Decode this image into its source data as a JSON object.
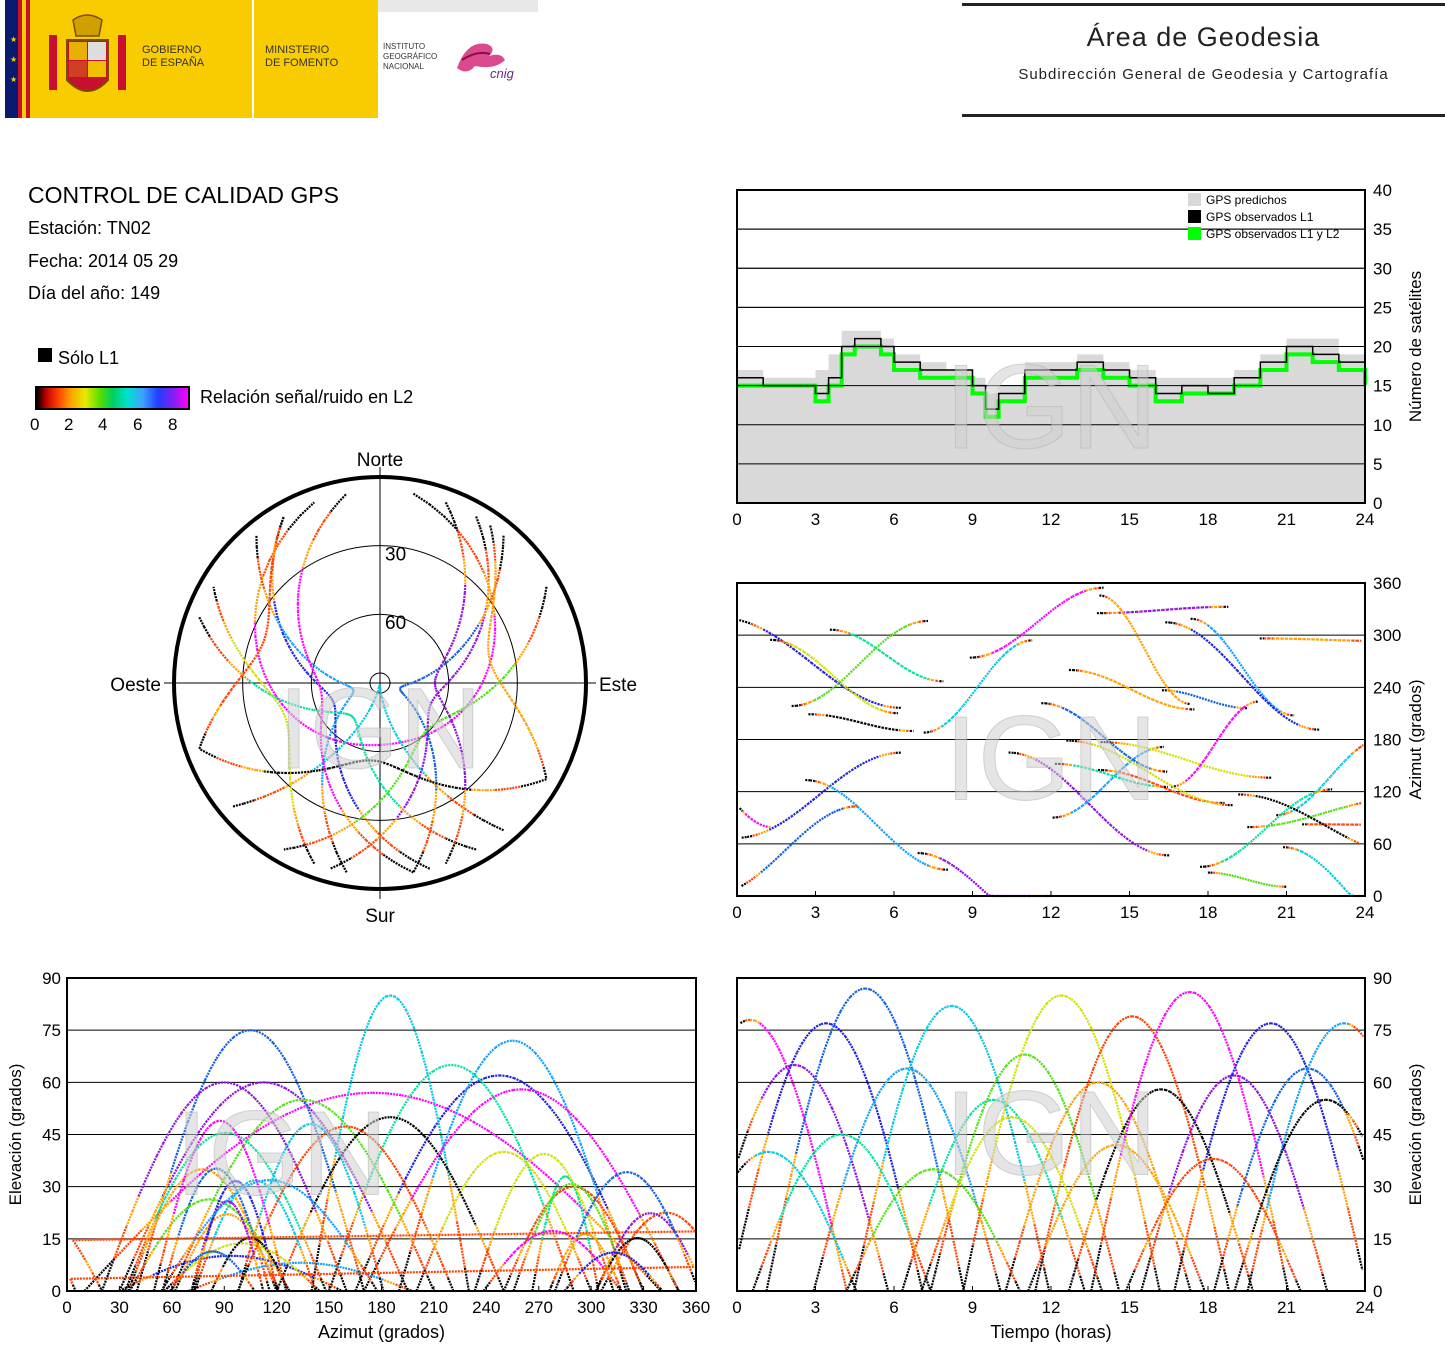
{
  "header": {
    "gov_line1": "GOBIERNO",
    "gov_line2": "DE ESPAÑA",
    "min_line1": "MINISTERIO",
    "min_line2": "DE FOMENTO",
    "inst_line1": "INSTITUTO",
    "inst_line2": "GEOGRÁFICO",
    "inst_line3": "NACIONAL",
    "cnig": "cnig",
    "area_title": "Área de Geodesia",
    "area_subtitle": "Subdirección General de Geodesia y Cartografía"
  },
  "info": {
    "title": "CONTROL DE CALIDAD GPS",
    "station": "Estación: TN02",
    "date": "Fecha: 2014 05 29",
    "doy": "Día del año: 149",
    "solo_l1": "Sólo L1",
    "snr_label": "Relación señal/ruido en L2",
    "snr_ticks": [
      "0",
      "2",
      "4",
      "6",
      "8"
    ]
  },
  "watermark": "IGN",
  "colors": {
    "predicted": "#d9d9d9",
    "observed_l1": "#000000",
    "observed_l1l2": "#00ff00",
    "track_palette": [
      "#ff00ff",
      "#9010e0",
      "#2020e0",
      "#1060e0",
      "#10a0ff",
      "#00c8e0",
      "#00e0a0",
      "#50e010",
      "#d0e000",
      "#ffa000",
      "#ff4000",
      "#000000"
    ]
  },
  "chart_data": [
    {
      "type": "area",
      "id": "satellite-count",
      "x_ticks": [
        "0",
        "3",
        "6",
        "9",
        "12",
        "15",
        "18",
        "21",
        "24"
      ],
      "y_ticks": [
        "0",
        "5",
        "10",
        "15",
        "20",
        "25",
        "30",
        "35",
        "40"
      ],
      "xlim": [
        0,
        24
      ],
      "ylim": [
        0,
        40
      ],
      "ylabel": "Número de satélites",
      "legend": [
        "GPS predichos",
        "GPS observados L1",
        "GPS observados L1 y L2"
      ],
      "legend_position": "top-right",
      "grid": true,
      "series": [
        {
          "name": "GPS predichos",
          "x": [
            0,
            1,
            2,
            3,
            3.5,
            4,
            4.5,
            5,
            5.5,
            6,
            7,
            8,
            9,
            9.5,
            10,
            11,
            12,
            13,
            14,
            15,
            16,
            17,
            18,
            19,
            20,
            21,
            22,
            23,
            24
          ],
          "y": [
            17,
            16,
            16,
            17,
            19,
            22,
            22,
            22,
            21,
            19,
            18,
            17,
            16,
            14,
            15,
            18,
            18,
            19,
            18,
            17,
            16,
            16,
            16,
            17,
            19,
            21,
            21,
            19,
            17
          ]
        },
        {
          "name": "GPS observados L1",
          "x": [
            0,
            1,
            2,
            3,
            3.5,
            4,
            4.5,
            5,
            5.5,
            6,
            7,
            8,
            9,
            9.5,
            10,
            11,
            12,
            13,
            14,
            15,
            16,
            17,
            18,
            19,
            20,
            21,
            22,
            23,
            24
          ],
          "y": [
            16,
            15,
            15,
            14,
            16,
            20,
            21,
            21,
            20,
            18,
            17,
            17,
            15,
            12,
            14,
            17,
            17,
            18,
            17,
            16,
            14,
            15,
            14,
            16,
            18,
            20,
            19,
            18,
            16
          ]
        },
        {
          "name": "GPS observados L1 y L2",
          "x": [
            0,
            1,
            2,
            3,
            3.5,
            4,
            4.5,
            5,
            5.5,
            6,
            7,
            8,
            9,
            9.5,
            10,
            11,
            12,
            13,
            14,
            15,
            16,
            17,
            18,
            19,
            20,
            21,
            22,
            23,
            24
          ],
          "y": [
            15,
            15,
            15,
            13,
            15,
            19,
            20,
            20,
            19,
            17,
            16,
            16,
            14,
            11,
            13,
            16,
            16,
            17,
            16,
            15,
            13,
            14,
            14,
            15,
            17,
            19,
            18,
            17,
            15
          ]
        }
      ]
    },
    {
      "type": "scatter",
      "id": "skyplot",
      "directions": {
        "north": "Norte",
        "south": "Sur",
        "east": "Este",
        "west": "Oeste"
      },
      "ring_labels": [
        "30",
        "60"
      ],
      "rings": [
        30,
        60
      ],
      "series": [
        {
          "rise_az": 10,
          "set_az": 340,
          "max_el": 57
        },
        {
          "rise_az": 30,
          "set_az": 195,
          "max_el": 60
        },
        {
          "rise_az": 165,
          "set_az": 330,
          "max_el": 62
        },
        {
          "rise_az": 40,
          "set_az": 170,
          "max_el": 75
        },
        {
          "rise_az": 190,
          "set_az": 320,
          "max_el": 72
        },
        {
          "rise_az": 140,
          "set_az": 230,
          "max_el": 85
        },
        {
          "rise_az": 150,
          "set_az": 290,
          "max_el": 65
        },
        {
          "rise_az": 60,
          "set_az": 210,
          "max_el": 55
        },
        {
          "rise_az": 200,
          "set_az": 300,
          "max_el": 40
        },
        {
          "rise_az": 35,
          "set_az": 120,
          "max_el": 35
        },
        {
          "rise_az": 250,
          "set_az": 330,
          "max_el": 30
        },
        {
          "rise_az": 120,
          "set_az": 250,
          "max_el": 50
        },
        {
          "rise_az": 170,
          "set_az": 350,
          "max_el": 58
        },
        {
          "rise_az": 20,
          "set_az": 160,
          "max_el": 60
        }
      ]
    },
    {
      "type": "scatter",
      "id": "azimuth-time",
      "x_ticks": [
        "0",
        "3",
        "6",
        "9",
        "12",
        "15",
        "18",
        "21",
        "24"
      ],
      "y_ticks": [
        "0",
        "60",
        "120",
        "180",
        "240",
        "300",
        "360"
      ],
      "xlim": [
        0,
        24
      ],
      "ylim": [
        0,
        360
      ],
      "ylabel": "Azimut (grados)",
      "grid": true
    },
    {
      "type": "scatter",
      "id": "elevation-azimuth",
      "x_ticks": [
        "0",
        "30",
        "60",
        "90",
        "120",
        "150",
        "180",
        "210",
        "240",
        "270",
        "300",
        "330",
        "360"
      ],
      "y_ticks": [
        "0",
        "15",
        "30",
        "45",
        "60",
        "75",
        "90"
      ],
      "xlim": [
        0,
        360
      ],
      "ylim": [
        0,
        90
      ],
      "xlabel": "Azimut (grados)",
      "ylabel": "Elevación (grados)",
      "grid": true
    },
    {
      "type": "line",
      "id": "elevation-time",
      "x_ticks": [
        "0",
        "3",
        "6",
        "9",
        "12",
        "15",
        "18",
        "21",
        "24"
      ],
      "y_ticks": [
        "0",
        "15",
        "30",
        "45",
        "60",
        "75",
        "90"
      ],
      "xlim": [
        0,
        24
      ],
      "ylim": [
        0,
        90
      ],
      "xlabel": "Tiempo (horas)",
      "ylabel": "Elevación (grados)",
      "grid": true,
      "peaks": [
        {
          "t_peak": 0.5,
          "max_el": 78
        },
        {
          "t_peak": 2.2,
          "max_el": 65
        },
        {
          "t_peak": 3.4,
          "max_el": 77
        },
        {
          "t_peak": 4.9,
          "max_el": 87
        },
        {
          "t_peak": 6.5,
          "max_el": 64
        },
        {
          "t_peak": 8.2,
          "max_el": 82
        },
        {
          "t_peak": 9.8,
          "max_el": 55
        },
        {
          "t_peak": 11.0,
          "max_el": 68
        },
        {
          "t_peak": 12.4,
          "max_el": 85
        },
        {
          "t_peak": 13.8,
          "max_el": 60
        },
        {
          "t_peak": 15.1,
          "max_el": 79
        },
        {
          "t_peak": 16.2,
          "max_el": 58
        },
        {
          "t_peak": 17.3,
          "max_el": 86
        },
        {
          "t_peak": 19.0,
          "max_el": 62
        },
        {
          "t_peak": 20.4,
          "max_el": 77
        },
        {
          "t_peak": 21.8,
          "max_el": 64
        },
        {
          "t_peak": 23.2,
          "max_el": 77
        },
        {
          "t_peak": 1.2,
          "max_el": 40
        },
        {
          "t_peak": 4.0,
          "max_el": 45
        },
        {
          "t_peak": 7.5,
          "max_el": 35
        },
        {
          "t_peak": 10.5,
          "max_el": 50
        },
        {
          "t_peak": 14.5,
          "max_el": 42
        },
        {
          "t_peak": 18.2,
          "max_el": 38
        },
        {
          "t_peak": 22.5,
          "max_el": 55
        }
      ]
    }
  ]
}
